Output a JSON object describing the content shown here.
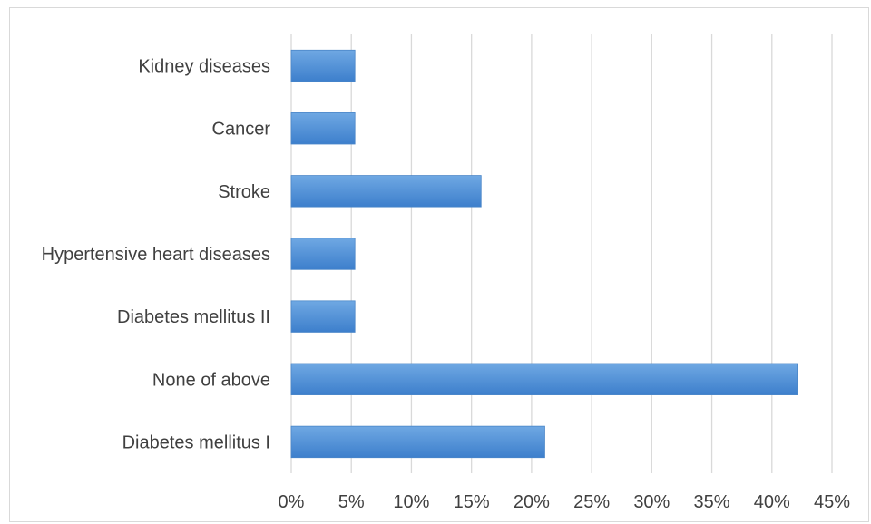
{
  "chart_data": {
    "type": "bar",
    "orientation": "horizontal",
    "title": "",
    "xlabel": "",
    "ylabel": "",
    "categories": [
      "Kidney diseases",
      "Cancer",
      "Stroke",
      "Hypertensive heart diseases",
      "Diabetes mellitus II",
      "None of above",
      "Diabetes mellitus I"
    ],
    "values": [
      5.3,
      5.3,
      15.8,
      5.3,
      5.3,
      42.1,
      21.1
    ],
    "xlim": [
      0,
      45
    ],
    "xticks": [
      0,
      5,
      10,
      15,
      20,
      25,
      30,
      35,
      40,
      45
    ],
    "xtick_labels": [
      "0%",
      "5%",
      "10%",
      "15%",
      "20%",
      "25%",
      "30%",
      "35%",
      "40%",
      "45%"
    ],
    "grid": true,
    "legend": "none",
    "colors": {
      "bar_top": "#6fa8e3",
      "bar_bottom": "#3d7fcc",
      "bar_edge": "#4a86c8",
      "grid": "#d9d9d9",
      "text": "#404040"
    }
  }
}
